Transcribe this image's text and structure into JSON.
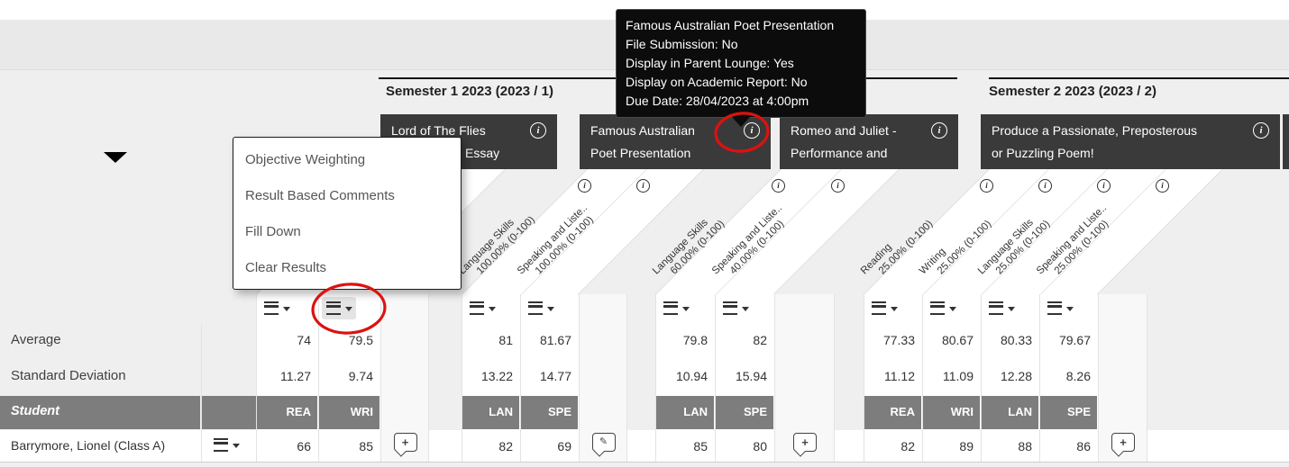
{
  "tooltip": {
    "lines": [
      "Famous Australian Poet Presentation",
      "File Submission: No",
      "Display in Parent Lounge: Yes",
      "Display on Academic Report: No",
      "Due Date: 28/04/2023 at 4:00pm"
    ]
  },
  "context_menu": {
    "items": [
      "Objective Weighting",
      "Result Based Comments",
      "Fill Down",
      "Clear Results"
    ]
  },
  "semesters": [
    {
      "label": "Semester 1 2023 (2023 / 1)"
    },
    {
      "label": "Semester 2 2023 (2023 / 2)"
    }
  ],
  "assessments": [
    {
      "title_line1": "Lord of The Flies",
      "title_line2": "Essay",
      "comment_icon": "add-comment",
      "columns": [
        {
          "code": "REA",
          "objective": null,
          "weight": null,
          "average": "74",
          "stdev": "11.27",
          "student_result": "66"
        },
        {
          "code": "WRI",
          "objective": null,
          "weight": null,
          "average": "79.5",
          "stdev": "9.74",
          "student_result": "85"
        }
      ]
    },
    {
      "title_line1": "Famous Australian",
      "title_line2": "Poet Presentation",
      "comment_icon": "edit-comment",
      "columns": [
        {
          "code": "LAN",
          "objective": "Language Skills",
          "weight": "100.00% (0-100)",
          "average": "81",
          "stdev": "13.22",
          "student_result": "82"
        },
        {
          "code": "SPE",
          "objective": "Speaking and Liste..",
          "weight": "100.00% (0-100)",
          "average": "81.67",
          "stdev": "14.77",
          "student_result": "69"
        }
      ]
    },
    {
      "title_line1": "Romeo and Juliet -",
      "title_line2": "Performance and",
      "comment_icon": "add-comment",
      "columns": [
        {
          "code": "LAN",
          "objective": "Language Skills",
          "weight": "60.00% (0-100)",
          "average": "79.8",
          "stdev": "10.94",
          "student_result": "85"
        },
        {
          "code": "SPE",
          "objective": "Speaking and Liste..",
          "weight": "40.00% (0-100)",
          "average": "82",
          "stdev": "15.94",
          "student_result": "80"
        }
      ]
    },
    {
      "title_line1": "Produce a Passionate, Preposterous",
      "title_line2": "or Puzzling Poem!",
      "comment_icon": "add-comment",
      "columns": [
        {
          "code": "REA",
          "objective": "Reading",
          "weight": "25.00% (0-100)",
          "average": "77.33",
          "stdev": "11.12",
          "student_result": "82"
        },
        {
          "code": "WRI",
          "objective": "Writing",
          "weight": "25.00% (0-100)",
          "average": "80.67",
          "stdev": "11.09",
          "student_result": "89"
        },
        {
          "code": "LAN",
          "objective": "Language Skills",
          "weight": "25.00% (0-100)",
          "average": "80.33",
          "stdev": "12.28",
          "student_result": "88"
        },
        {
          "code": "SPE",
          "objective": "Speaking and Liste..",
          "weight": "25.00% (0-100)",
          "average": "79.67",
          "stdev": "8.26",
          "student_result": "86"
        }
      ]
    }
  ],
  "rows": {
    "average_label": "Average",
    "stdev_label": "Standard Deviation",
    "student_header_label": "Student"
  },
  "students": [
    {
      "name": "Barrymore, Lionel (Class A)"
    }
  ],
  "colors": {
    "accent_annotation": "#dd1111",
    "assessment_header_bg": "#3a3a3a",
    "student_header_bg": "#7d7d7d"
  }
}
